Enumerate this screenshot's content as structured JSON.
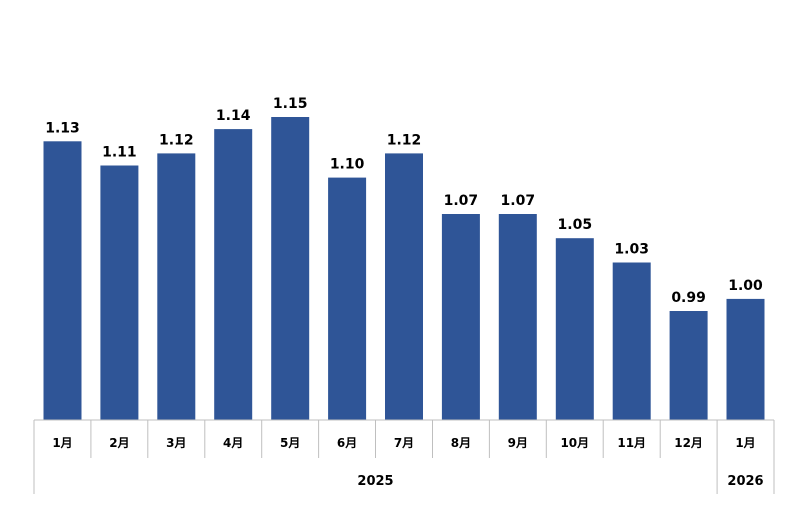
{
  "chart_data": {
    "type": "bar",
    "categories": [
      "1月",
      "2月",
      "3月",
      "4月",
      "5月",
      "6月",
      "7月",
      "8月",
      "9月",
      "10月",
      "11月",
      "12月",
      "1月"
    ],
    "values": [
      1.13,
      1.11,
      1.12,
      1.14,
      1.15,
      1.1,
      1.12,
      1.07,
      1.07,
      1.05,
      1.03,
      0.99,
      1.0
    ],
    "value_labels": [
      "1.13",
      "1.11",
      "1.12",
      "1.14",
      "1.15",
      "1.10",
      "1.12",
      "1.07",
      "1.07",
      "1.05",
      "1.03",
      "0.99",
      "1.00"
    ],
    "year_groups": [
      {
        "label": "2025",
        "count": 12
      },
      {
        "label": "2026",
        "count": 1
      }
    ],
    "ylim": [
      0.92,
      1.2
    ],
    "grid": false,
    "legend": "none",
    "bar_color": "#2f5597",
    "axis_color": "#bfbfbf"
  }
}
